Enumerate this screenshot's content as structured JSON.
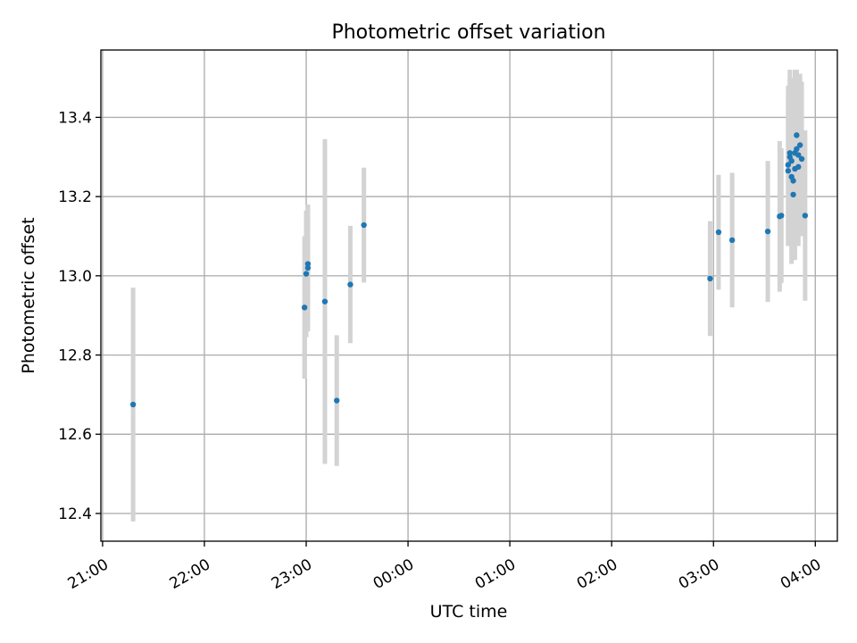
{
  "chart_data": {
    "type": "scatter",
    "title": "Photometric offset variation",
    "xlabel": "UTC time",
    "ylabel": "Photometric offset",
    "grid": true,
    "xlim": [
      "20:59",
      "04:13"
    ],
    "ylim": [
      12.33,
      13.57
    ],
    "xticks": [
      "21:00",
      "22:00",
      "23:00",
      "00:00",
      "01:00",
      "02:00",
      "03:00",
      "04:00"
    ],
    "yticks": [
      "12.4",
      "12.6",
      "12.8",
      "13.0",
      "13.2",
      "13.4"
    ],
    "colors": {
      "points": "#1f77b4",
      "errorbars": "#d3d3d3"
    },
    "series": [
      {
        "points": [
          {
            "x": "21:18",
            "y": 12.675,
            "yerr": 0.295
          },
          {
            "x": "22:59",
            "y": 12.92,
            "yerr": 0.18
          },
          {
            "x": "23:00",
            "y": 13.005,
            "yerr": 0.16
          },
          {
            "x": "23:01",
            "y": 13.02,
            "yerr": 0.16
          },
          {
            "x": "23:01",
            "y": 13.03,
            "yerr": 0.15
          },
          {
            "x": "23:11",
            "y": 12.935,
            "yerr": 0.41
          },
          {
            "x": "23:18",
            "y": 12.685,
            "yerr": 0.165
          },
          {
            "x": "23:26",
            "y": 12.978,
            "yerr": 0.148
          },
          {
            "x": "23:34",
            "y": 13.128,
            "yerr": 0.145
          },
          {
            "x": "02:58",
            "y": 12.993,
            "yerr": 0.145
          },
          {
            "x": "03:03",
            "y": 13.11,
            "yerr": 0.145
          },
          {
            "x": "03:11",
            "y": 13.09,
            "yerr": 0.17
          },
          {
            "x": "03:32",
            "y": 13.112,
            "yerr": 0.178
          },
          {
            "x": "03:39",
            "y": 13.15,
            "yerr": 0.19
          },
          {
            "x": "03:40",
            "y": 13.152,
            "yerr": 0.17
          },
          {
            "x": "03:44",
            "y": 13.265,
            "yerr": 0.19
          },
          {
            "x": "03:44",
            "y": 13.28,
            "yerr": 0.2
          },
          {
            "x": "03:45",
            "y": 13.31,
            "yerr": 0.21
          },
          {
            "x": "03:45",
            "y": 13.3,
            "yerr": 0.2
          },
          {
            "x": "03:46",
            "y": 13.25,
            "yerr": 0.22
          },
          {
            "x": "03:46",
            "y": 13.29,
            "yerr": 0.21
          },
          {
            "x": "03:47",
            "y": 13.24,
            "yerr": 0.2
          },
          {
            "x": "03:47",
            "y": 13.205,
            "yerr": 0.12
          },
          {
            "x": "03:48",
            "y": 13.31,
            "yerr": 0.21
          },
          {
            "x": "03:48",
            "y": 13.27,
            "yerr": 0.23
          },
          {
            "x": "03:49",
            "y": 13.355,
            "yerr": 0.165
          },
          {
            "x": "03:49",
            "y": 13.32,
            "yerr": 0.2
          },
          {
            "x": "03:50",
            "y": 13.305,
            "yerr": 0.2
          },
          {
            "x": "03:50",
            "y": 13.275,
            "yerr": 0.2
          },
          {
            "x": "03:51",
            "y": 13.33,
            "yerr": 0.18
          },
          {
            "x": "03:52",
            "y": 13.295,
            "yerr": 0.195
          },
          {
            "x": "03:54",
            "y": 13.152,
            "yerr": 0.215
          }
        ]
      }
    ]
  }
}
